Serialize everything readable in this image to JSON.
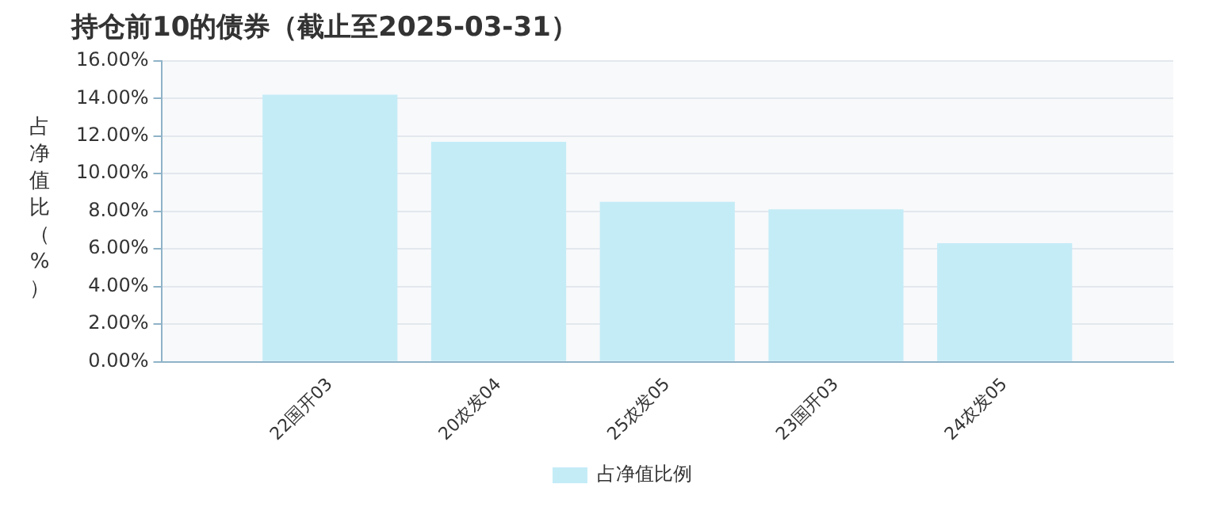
{
  "chart_data": {
    "type": "bar",
    "title": "持仓前10的债券（截止至2025-03-31）",
    "ylabel": "占净值比（%）",
    "categories": [
      null,
      "22国开03",
      "20农发04",
      "25农发05",
      "23国开03",
      "24农发05",
      null
    ],
    "series": [
      {
        "name": "占净值比例",
        "color": "#c4ecf7",
        "values": [
          null,
          14.2,
          11.7,
          8.5,
          8.1,
          6.3,
          null
        ]
      }
    ],
    "ylim": [
      0,
      16
    ],
    "yticks": [
      {
        "value": 0,
        "label": "0.00%"
      },
      {
        "value": 2,
        "label": "2.00%"
      },
      {
        "value": 4,
        "label": "4.00%"
      },
      {
        "value": 6,
        "label": "6.00%"
      },
      {
        "value": 8,
        "label": "8.00%"
      },
      {
        "value": 10,
        "label": "10.00%"
      },
      {
        "value": 12,
        "label": "12.00%"
      },
      {
        "value": 14,
        "label": "14.00%"
      },
      {
        "value": 16,
        "label": "16.00%"
      }
    ],
    "grid": "y",
    "legend": "bottom"
  }
}
